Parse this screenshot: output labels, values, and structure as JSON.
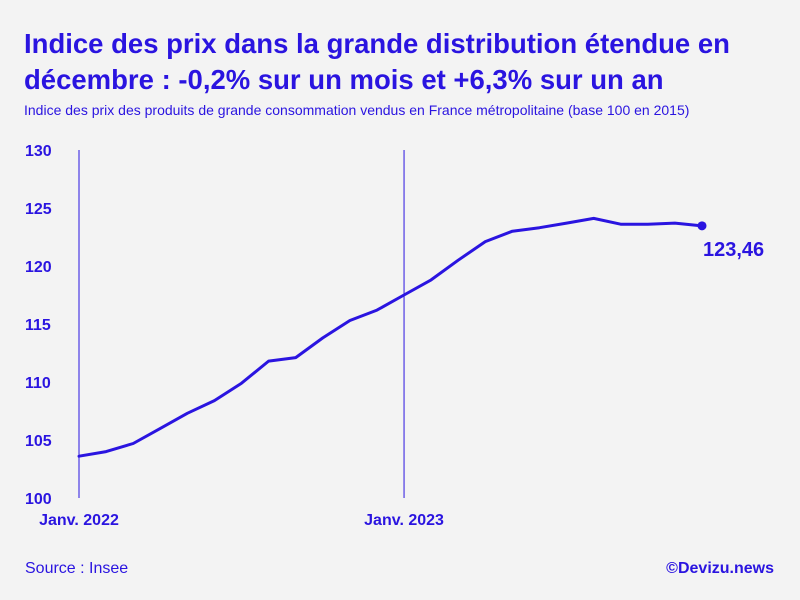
{
  "header": {
    "title": "Indice des prix dans la grande distribution étendue en décembre : -0,2% sur un mois et +6,3% sur un an",
    "subtitle": "Indice des prix des produits de grande consommation vendus en France métropolitaine (base 100 en 2015)"
  },
  "footer": {
    "source": "Source : Insee",
    "credit": "©Devizu.news"
  },
  "colors": {
    "accent": "#2a14e0",
    "background": "#f3f3f3"
  },
  "chart_data": {
    "type": "line",
    "title": "Indice des prix dans la grande distribution étendue en décembre : -0,2% sur un mois et +6,3% sur un an",
    "xlabel": "",
    "ylabel": "",
    "ylim": [
      100,
      130
    ],
    "yticks": [
      100,
      105,
      110,
      115,
      120,
      125,
      130
    ],
    "x": [
      "2022-01",
      "2022-02",
      "2022-03",
      "2022-04",
      "2022-05",
      "2022-06",
      "2022-07",
      "2022-08",
      "2022-09",
      "2022-10",
      "2022-11",
      "2022-12",
      "2023-01",
      "2023-02",
      "2023-03",
      "2023-04",
      "2023-05",
      "2023-06",
      "2023-07",
      "2023-08",
      "2023-09",
      "2023-10",
      "2023-11",
      "2023-12"
    ],
    "xtick_labels": [
      {
        "x": "2022-01",
        "label": "Janv. 2022"
      },
      {
        "x": "2023-01",
        "label": "Janv. 2023"
      }
    ],
    "reference_lines": [
      "2022-01",
      "2023-01"
    ],
    "series": [
      {
        "values": [
          103.6,
          104.0,
          104.7,
          106.0,
          107.3,
          108.4,
          109.9,
          111.8,
          112.1,
          113.8,
          115.3,
          116.2,
          117.5,
          118.8,
          120.5,
          122.1,
          123.0,
          123.3,
          123.7,
          124.1,
          123.6,
          123.6,
          123.7,
          123.46
        ]
      }
    ],
    "last_point_label": "123,46",
    "grid": false,
    "legend": "none"
  }
}
